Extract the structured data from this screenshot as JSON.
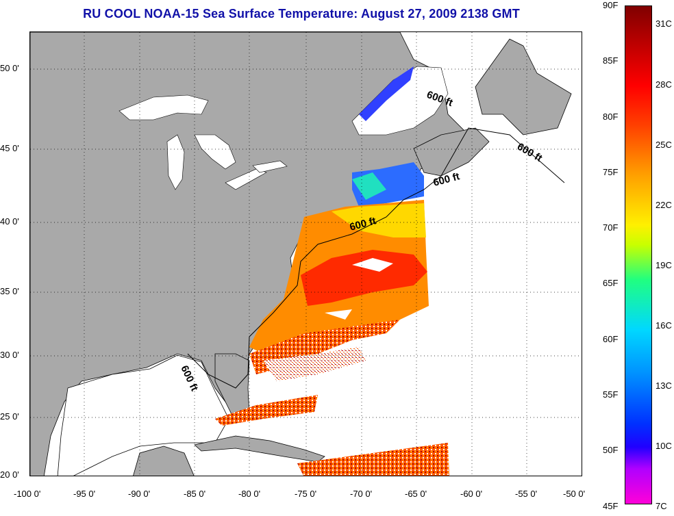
{
  "title": "RU COOL  NOAA-15  Sea Surface Temperature:  August 27, 2009 2138 GMT",
  "map": {
    "latitude_labels": [
      "50 0'",
      "45 0'",
      "40 0'",
      "35 0'",
      "30 0'",
      "25 0'",
      "20 0'"
    ],
    "longitude_labels": [
      "-100 0'",
      "-95 0'",
      "-90 0'",
      "-85 0'",
      "-80 0'",
      "-75 0'",
      "-70 0'",
      "-65 0'",
      "-60 0'",
      "-55 0'",
      "-50 0'"
    ],
    "depth_contour_label": "600 ft",
    "colors": {
      "land": "#a9a9a9",
      "no_data": "#ffffff",
      "grid": "#000000"
    }
  },
  "colorbar": {
    "fahrenheit": [
      "90F",
      "85F",
      "80F",
      "75F",
      "70F",
      "65F",
      "60F",
      "55F",
      "50F",
      "45F"
    ],
    "celsius": [
      "31C",
      "28C",
      "25C",
      "22C",
      "19C",
      "16C",
      "13C",
      "10C",
      "7C"
    ]
  }
}
